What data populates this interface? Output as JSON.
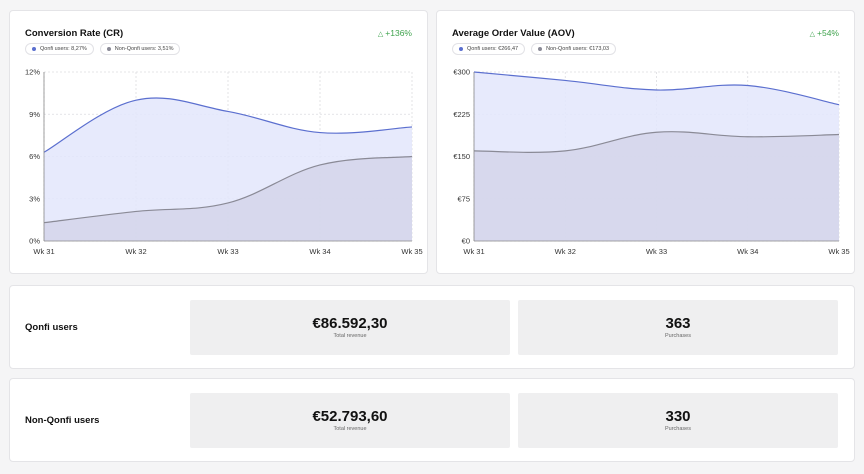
{
  "colors": {
    "qonfi": "#5b6fcf",
    "non_qonfi": "#8a8a96",
    "delta": "#3fa34d"
  },
  "cr": {
    "title": "Conversion Rate (CR)",
    "delta": "+136%",
    "delta_icon": "triangle-up-icon",
    "legend": [
      "Qonfi users: 8,27%",
      "Non-Qonfi users: 3,51%"
    ]
  },
  "aov": {
    "title": "Average Order Value (AOV)",
    "delta": "+54%",
    "delta_icon": "triangle-up-icon",
    "legend": [
      "Qonfi users: €266,47",
      "Non-Qonfi users: €173,03"
    ]
  },
  "chart_data": [
    {
      "type": "area",
      "title": "Conversion Rate (CR)",
      "categories": [
        "Wk 31",
        "Wk 32",
        "Wk 33",
        "Wk 34",
        "Wk 35"
      ],
      "series": [
        {
          "name": "Qonfi users: 8,27%",
          "values": [
            6.3,
            10.0,
            9.2,
            7.7,
            8.1
          ]
        },
        {
          "name": "Non-Qonfi users: 3,51%",
          "values": [
            1.3,
            2.1,
            2.7,
            5.4,
            6.0
          ]
        }
      ],
      "yticks": [
        "0%",
        "3%",
        "6%",
        "9%",
        "12%"
      ],
      "ylim": [
        0,
        12
      ],
      "grid": true
    },
    {
      "type": "area",
      "title": "Average Order Value (AOV)",
      "categories": [
        "Wk 31",
        "Wk 32",
        "Wk 33",
        "Wk 34",
        "Wk 35"
      ],
      "series": [
        {
          "name": "Qonfi users: €266,47",
          "values": [
            300,
            285,
            268,
            276,
            242
          ]
        },
        {
          "name": "Non-Qonfi users: €173,03",
          "values": [
            160,
            160,
            193,
            185,
            189
          ]
        }
      ],
      "yticks": [
        "€0",
        "€75",
        "€150",
        "€225",
        "€300"
      ],
      "ylim": [
        0,
        300
      ],
      "grid": true
    }
  ],
  "rows": [
    {
      "label": "Qonfi users",
      "revenue": "€86.592,30",
      "revenue_label": "Total revenue",
      "purchases": "363",
      "purchases_label": "Purchases"
    },
    {
      "label": "Non-Qonfi users",
      "revenue": "€52.793,60",
      "revenue_label": "Total revenue",
      "purchases": "330",
      "purchases_label": "Purchases"
    }
  ]
}
